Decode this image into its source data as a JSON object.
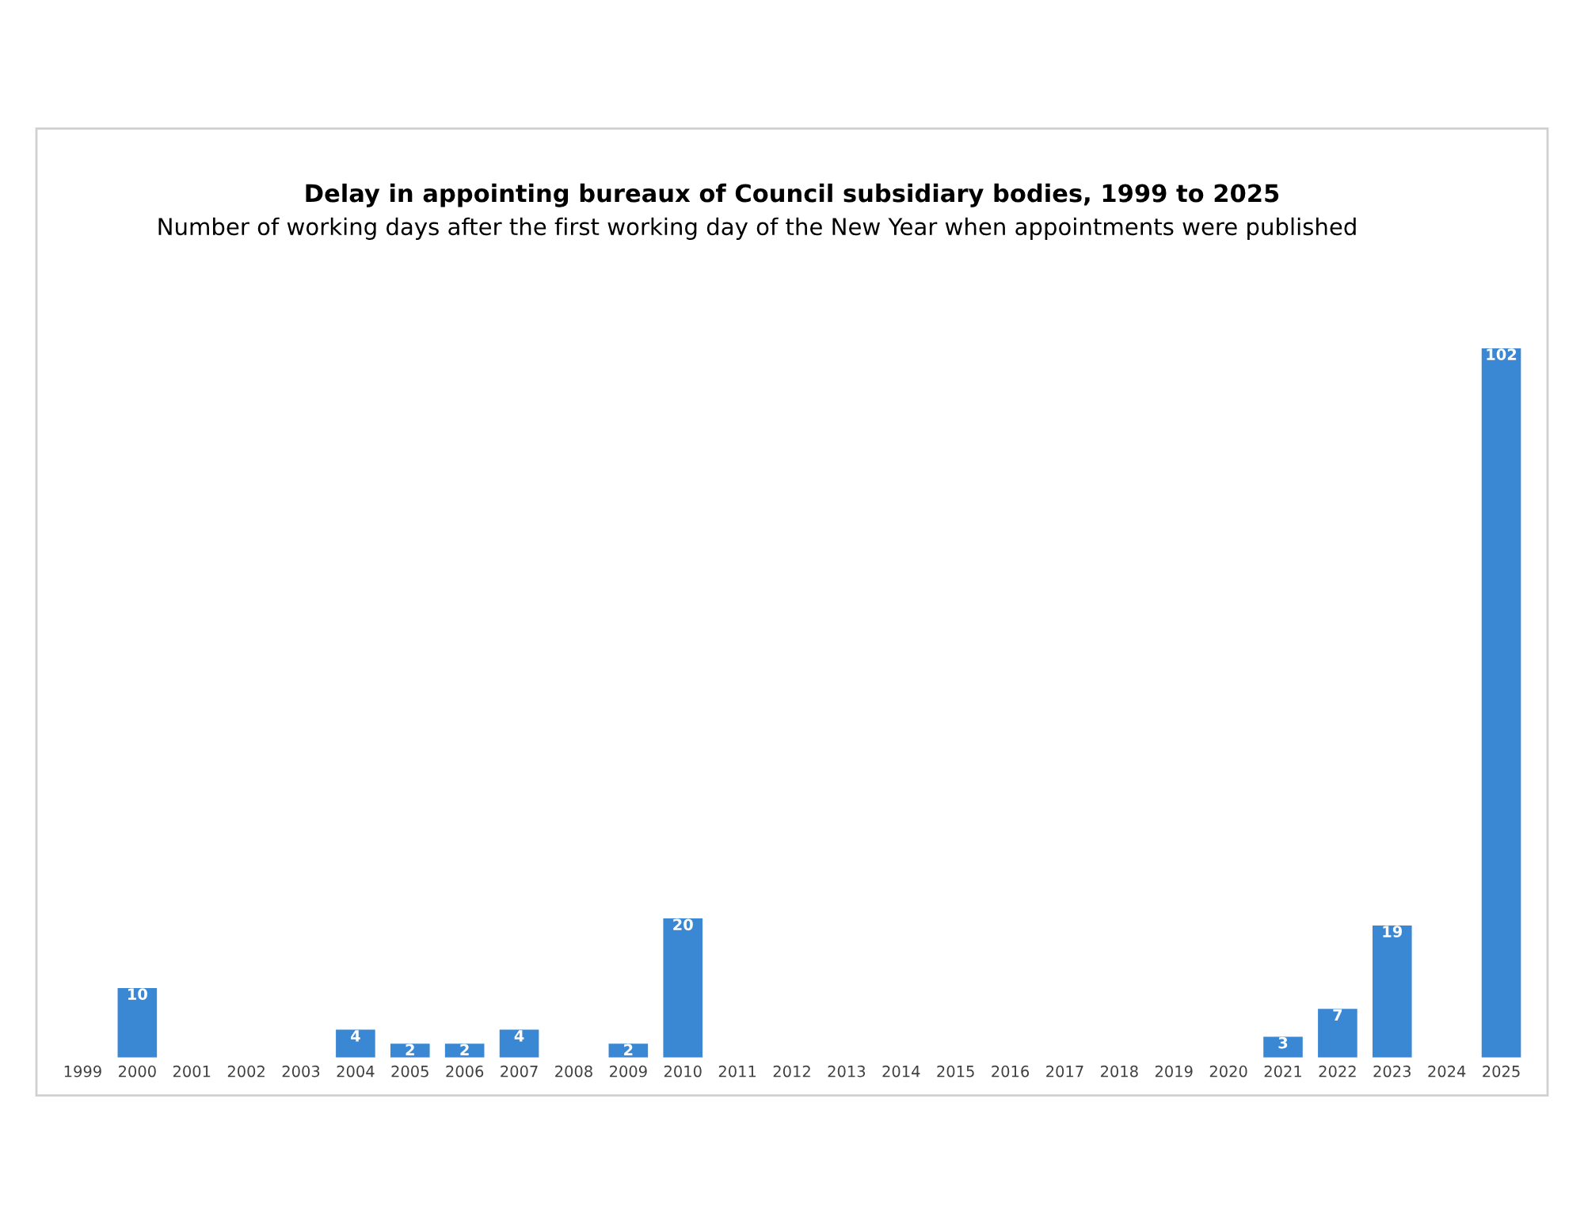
{
  "chart_data": {
    "type": "bar",
    "title": "Delay in appointing bureaux of Council subsidiary bodies, 1999 to 2025",
    "subtitle": "Number of working days after the first working day of the New Year when appointments were published",
    "categories": [
      "1999",
      "2000",
      "2001",
      "2002",
      "2003",
      "2004",
      "2005",
      "2006",
      "2007",
      "2008",
      "2009",
      "2010",
      "2011",
      "2012",
      "2013",
      "2014",
      "2015",
      "2016",
      "2017",
      "2018",
      "2019",
      "2020",
      "2021",
      "2022",
      "2023",
      "2024",
      "2025"
    ],
    "values": [
      0,
      10,
      0,
      0,
      0,
      4,
      2,
      2,
      4,
      0,
      2,
      20,
      0,
      0,
      0,
      0,
      0,
      0,
      0,
      0,
      0,
      0,
      3,
      7,
      19,
      0,
      102
    ],
    "value_labels": [
      null,
      "10",
      null,
      null,
      null,
      "4",
      "2",
      "2",
      "4",
      null,
      "2",
      "20",
      null,
      null,
      null,
      null,
      null,
      null,
      null,
      null,
      null,
      null,
      "3",
      "7",
      "19",
      null,
      "102"
    ],
    "color": "#3a87d4",
    "grid": false,
    "legend": false
  }
}
